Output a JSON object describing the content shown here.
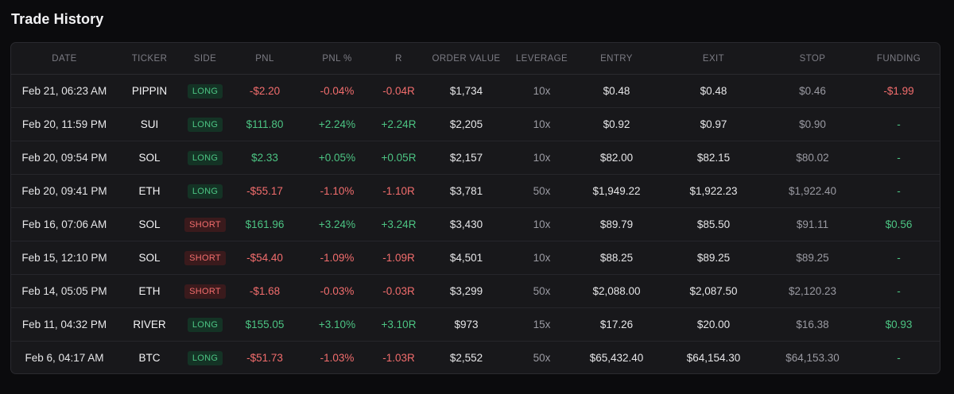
{
  "page_title": "Trade History",
  "columns": [
    "DATE",
    "TICKER",
    "SIDE",
    "PNL",
    "PNL %",
    "R",
    "ORDER VALUE",
    "LEVERAGE",
    "ENTRY",
    "EXIT",
    "STOP",
    "FUNDING"
  ],
  "colors": {
    "positive": "#4cc483",
    "negative": "#f26d6d",
    "background": "#0b0b0d",
    "card": "#18181b"
  },
  "trades": [
    {
      "date": "Feb 21, 06:23 AM",
      "ticker": "PIPPIN",
      "side": "LONG",
      "pnl": "-$2.20",
      "pnl_pct": "-0.04%",
      "r": "-0.04R",
      "order_value": "$1,734",
      "leverage": "10x",
      "entry": "$0.48",
      "exit": "$0.48",
      "stop": "$0.46",
      "funding": "-$1.99"
    },
    {
      "date": "Feb 20, 11:59 PM",
      "ticker": "SUI",
      "side": "LONG",
      "pnl": "$111.80",
      "pnl_pct": "+2.24%",
      "r": "+2.24R",
      "order_value": "$2,205",
      "leverage": "10x",
      "entry": "$0.92",
      "exit": "$0.97",
      "stop": "$0.90",
      "funding": "-"
    },
    {
      "date": "Feb 20, 09:54 PM",
      "ticker": "SOL",
      "side": "LONG",
      "pnl": "$2.33",
      "pnl_pct": "+0.05%",
      "r": "+0.05R",
      "order_value": "$2,157",
      "leverage": "10x",
      "entry": "$82.00",
      "exit": "$82.15",
      "stop": "$80.02",
      "funding": "-"
    },
    {
      "date": "Feb 20, 09:41 PM",
      "ticker": "ETH",
      "side": "LONG",
      "pnl": "-$55.17",
      "pnl_pct": "-1.10%",
      "r": "-1.10R",
      "order_value": "$3,781",
      "leverage": "50x",
      "entry": "$1,949.22",
      "exit": "$1,922.23",
      "stop": "$1,922.40",
      "funding": "-"
    },
    {
      "date": "Feb 16, 07:06 AM",
      "ticker": "SOL",
      "side": "SHORT",
      "pnl": "$161.96",
      "pnl_pct": "+3.24%",
      "r": "+3.24R",
      "order_value": "$3,430",
      "leverage": "10x",
      "entry": "$89.79",
      "exit": "$85.50",
      "stop": "$91.11",
      "funding": "$0.56"
    },
    {
      "date": "Feb 15, 12:10 PM",
      "ticker": "SOL",
      "side": "SHORT",
      "pnl": "-$54.40",
      "pnl_pct": "-1.09%",
      "r": "-1.09R",
      "order_value": "$4,501",
      "leverage": "10x",
      "entry": "$88.25",
      "exit": "$89.25",
      "stop": "$89.25",
      "funding": "-"
    },
    {
      "date": "Feb 14, 05:05 PM",
      "ticker": "ETH",
      "side": "SHORT",
      "pnl": "-$1.68",
      "pnl_pct": "-0.03%",
      "r": "-0.03R",
      "order_value": "$3,299",
      "leverage": "50x",
      "entry": "$2,088.00",
      "exit": "$2,087.50",
      "stop": "$2,120.23",
      "funding": "-"
    },
    {
      "date": "Feb 11, 04:32 PM",
      "ticker": "RIVER",
      "side": "LONG",
      "pnl": "$155.05",
      "pnl_pct": "+3.10%",
      "r": "+3.10R",
      "order_value": "$973",
      "leverage": "15x",
      "entry": "$17.26",
      "exit": "$20.00",
      "stop": "$16.38",
      "funding": "$0.93"
    },
    {
      "date": "Feb 6, 04:17 AM",
      "ticker": "BTC",
      "side": "LONG",
      "pnl": "-$51.73",
      "pnl_pct": "-1.03%",
      "r": "-1.03R",
      "order_value": "$2,552",
      "leverage": "50x",
      "entry": "$65,432.40",
      "exit": "$64,154.30",
      "stop": "$64,153.30",
      "funding": "-"
    }
  ]
}
